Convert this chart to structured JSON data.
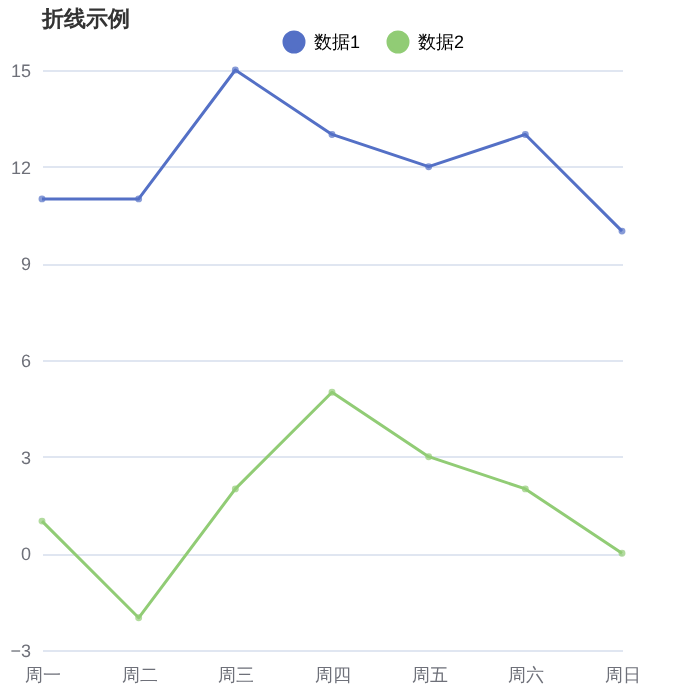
{
  "chart_data": {
    "type": "line",
    "title": "折线示例",
    "categories": [
      "周一",
      "周二",
      "周三",
      "周四",
      "周五",
      "周六",
      "周日"
    ],
    "series": [
      {
        "name": "数据1",
        "color": "#5470c6",
        "values": [
          11,
          11,
          15,
          13,
          12,
          13,
          10
        ]
      },
      {
        "name": "数据2",
        "color": "#91cc75",
        "values": [
          1,
          -2,
          2,
          5,
          3,
          2,
          0
        ]
      }
    ],
    "ylim": [
      -3,
      15
    ],
    "yticks": [
      -3,
      0,
      3,
      6,
      9,
      12,
      15
    ],
    "grid": "y",
    "legend": "top",
    "marker": "circle",
    "line_style": "solid"
  }
}
